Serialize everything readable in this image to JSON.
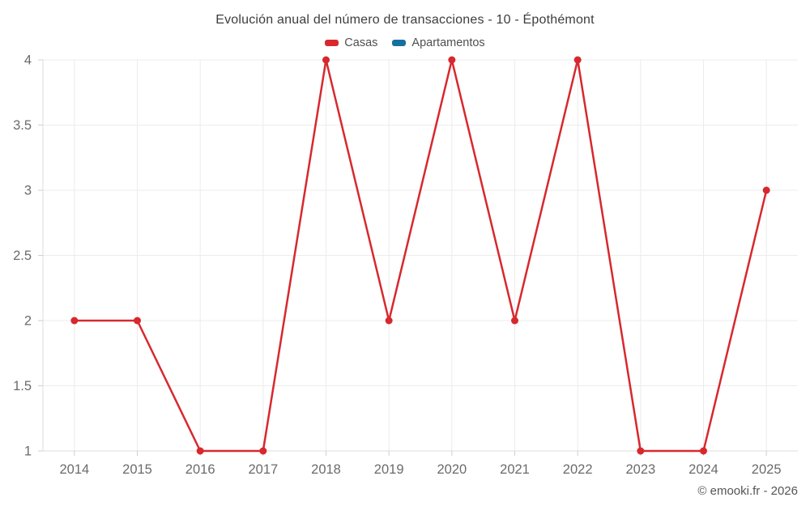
{
  "chart_data": {
    "type": "line",
    "title": "Evolución anual del número de transacciones - 10 - Épothémont",
    "categories": [
      "2014",
      "2015",
      "2016",
      "2017",
      "2018",
      "2019",
      "2020",
      "2021",
      "2022",
      "2023",
      "2024",
      "2025"
    ],
    "series": [
      {
        "name": "Casas",
        "color": "#d7282e",
        "values": [
          2,
          2,
          1,
          1,
          4,
          2,
          4,
          2,
          4,
          1,
          1,
          3
        ]
      },
      {
        "name": "Apartamentos",
        "color": "#17719f",
        "values": []
      }
    ],
    "ylim": [
      1,
      4
    ],
    "yticks": [
      1,
      1.5,
      2,
      2.5,
      3,
      3.5,
      4
    ],
    "xlabel": "",
    "ylabel": "",
    "grid": true,
    "legend_position": "top"
  },
  "footer": {
    "copyright": "© emooki.fr - 2026"
  }
}
